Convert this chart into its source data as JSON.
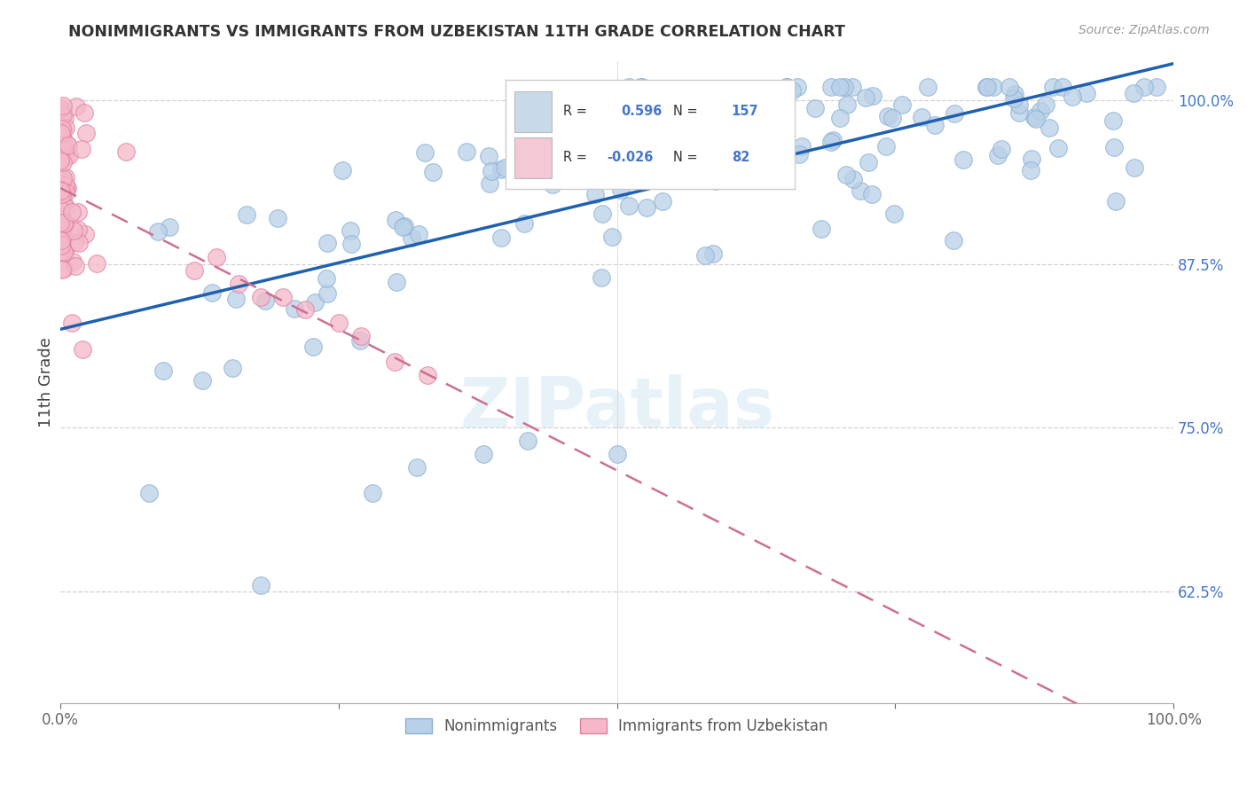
{
  "title": "NONIMMIGRANTS VS IMMIGRANTS FROM UZBEKISTAN 11TH GRADE CORRELATION CHART",
  "source": "Source: ZipAtlas.com",
  "ylabel": "11th Grade",
  "blue_R": 0.596,
  "blue_N": 157,
  "pink_R": -0.026,
  "pink_N": 82,
  "blue_color": "#b8d0e8",
  "blue_edge": "#8ab0d0",
  "pink_color": "#f4b8c8",
  "pink_edge": "#e080a0",
  "trend_blue_color": "#2060b0",
  "trend_pink_color": "#cc7090",
  "legend_box_blue": "#c8daea",
  "legend_box_pink": "#f4c8d4",
  "title_color": "#333333",
  "right_tick_color": "#4477cc",
  "background_color": "#ffffff",
  "ylim_low": 0.54,
  "ylim_high": 1.03,
  "xlim_low": 0.0,
  "xlim_high": 1.0
}
